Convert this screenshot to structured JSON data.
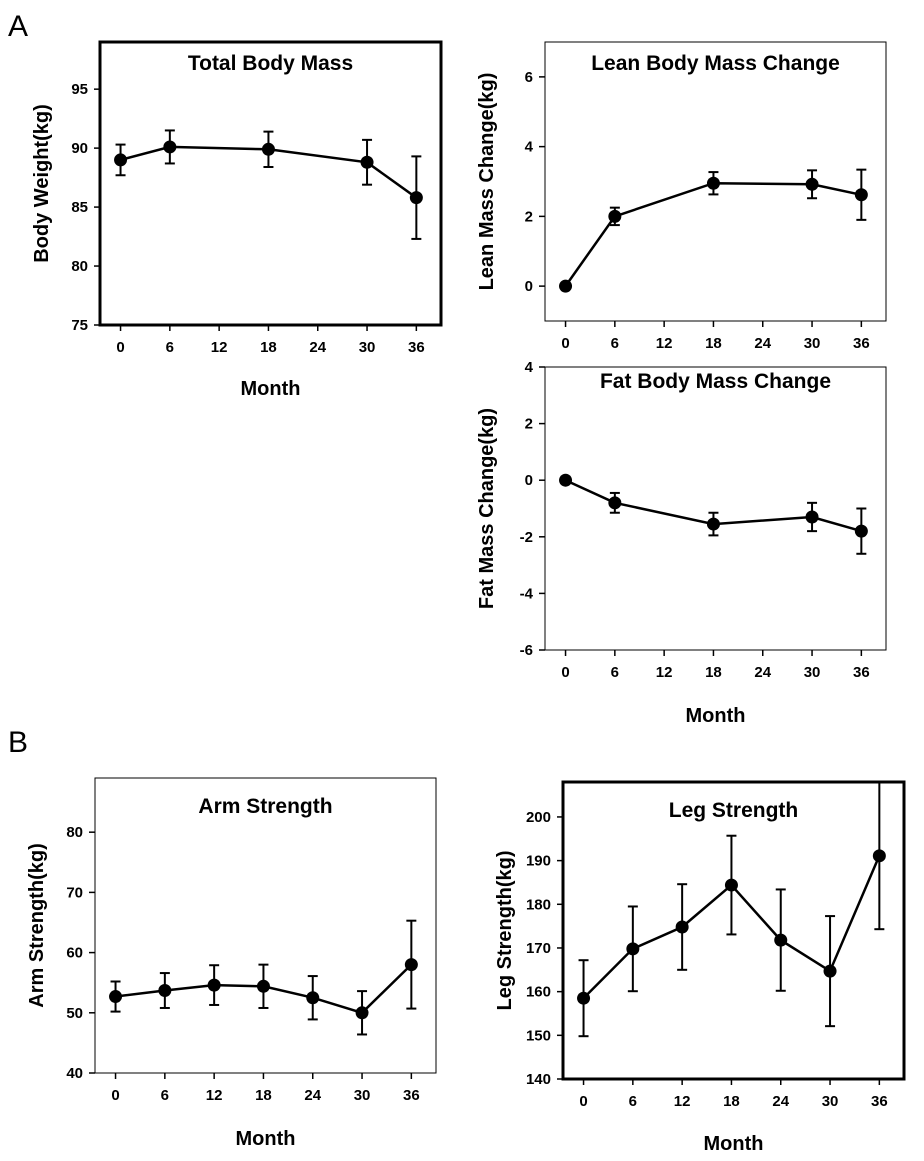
{
  "panels": {
    "A": "A",
    "B": "B"
  },
  "chart_data": [
    {
      "type": "line",
      "title": "Total Body Mass",
      "xlabel": "Month",
      "ylabel": "Body Weight(kg)",
      "xticks": [
        0,
        6,
        12,
        18,
        24,
        30,
        36
      ],
      "xlim": [
        -2.5,
        39
      ],
      "yticks": [
        75,
        80,
        85,
        90,
        95
      ],
      "ylim": [
        75,
        99
      ],
      "grid": false,
      "series": [
        {
          "x": [
            0,
            6,
            18,
            30,
            36
          ],
          "y": [
            89.0,
            90.1,
            89.9,
            88.8,
            85.8
          ],
          "err": [
            1.3,
            1.4,
            1.5,
            1.9,
            3.5
          ]
        }
      ]
    },
    {
      "type": "line",
      "title": "Lean Body Mass Change",
      "xlabel": "",
      "ylabel": "Lean Mass Change(kg)",
      "xticks": [
        0,
        6,
        12,
        18,
        24,
        30,
        36
      ],
      "xlim": [
        -2.5,
        39
      ],
      "yticks": [
        0,
        2,
        4,
        6
      ],
      "ylim": [
        -1,
        7
      ],
      "grid": false,
      "series": [
        {
          "x": [
            0,
            6,
            18,
            30,
            36
          ],
          "y": [
            0.0,
            2.0,
            2.95,
            2.92,
            2.62
          ],
          "err": [
            0.05,
            0.25,
            0.32,
            0.4,
            0.72
          ]
        }
      ]
    },
    {
      "type": "line",
      "title": "Fat Body Mass Change",
      "xlabel": "Month",
      "ylabel": "Fat Mass Change(kg)",
      "xticks": [
        0,
        6,
        12,
        18,
        24,
        30,
        36
      ],
      "xlim": [
        -2.5,
        39
      ],
      "yticks": [
        -6,
        -4,
        -2,
        0,
        2,
        4
      ],
      "ylim": [
        -6,
        4
      ],
      "grid": false,
      "series": [
        {
          "x": [
            0,
            6,
            18,
            30,
            36
          ],
          "y": [
            0.0,
            -0.8,
            -1.55,
            -1.3,
            -1.8
          ],
          "err": [
            0.05,
            0.35,
            0.4,
            0.5,
            0.8
          ]
        }
      ]
    },
    {
      "type": "line",
      "title": "Arm Strength",
      "xlabel": "Month",
      "ylabel": "Arm Strength(kg)",
      "xticks": [
        0,
        6,
        12,
        18,
        24,
        30,
        36
      ],
      "xlim": [
        -2.5,
        39
      ],
      "yticks": [
        40,
        50,
        60,
        70,
        80
      ],
      "ylim": [
        40,
        89
      ],
      "grid": false,
      "series": [
        {
          "x": [
            0,
            6,
            12,
            18,
            24,
            30,
            36
          ],
          "y": [
            52.7,
            53.7,
            54.6,
            54.4,
            52.5,
            50.0,
            58.0
          ],
          "err": [
            2.5,
            2.9,
            3.3,
            3.6,
            3.6,
            3.6,
            7.3
          ]
        }
      ]
    },
    {
      "type": "line",
      "title": "Leg Strength",
      "xlabel": "Month",
      "ylabel": "Leg Strength(kg)",
      "xticks": [
        0,
        6,
        12,
        18,
        24,
        30,
        36
      ],
      "xlim": [
        -2.5,
        39
      ],
      "yticks": [
        140,
        150,
        160,
        170,
        180,
        190,
        200
      ],
      "ylim": [
        140,
        208
      ],
      "grid": false,
      "series": [
        {
          "x": [
            0,
            6,
            12,
            18,
            24,
            30,
            36
          ],
          "y": [
            158.5,
            169.8,
            174.8,
            184.4,
            171.8,
            164.7,
            191.1
          ],
          "err": [
            8.7,
            9.7,
            9.8,
            11.3,
            11.6,
            12.6,
            16.8
          ]
        }
      ]
    }
  ]
}
